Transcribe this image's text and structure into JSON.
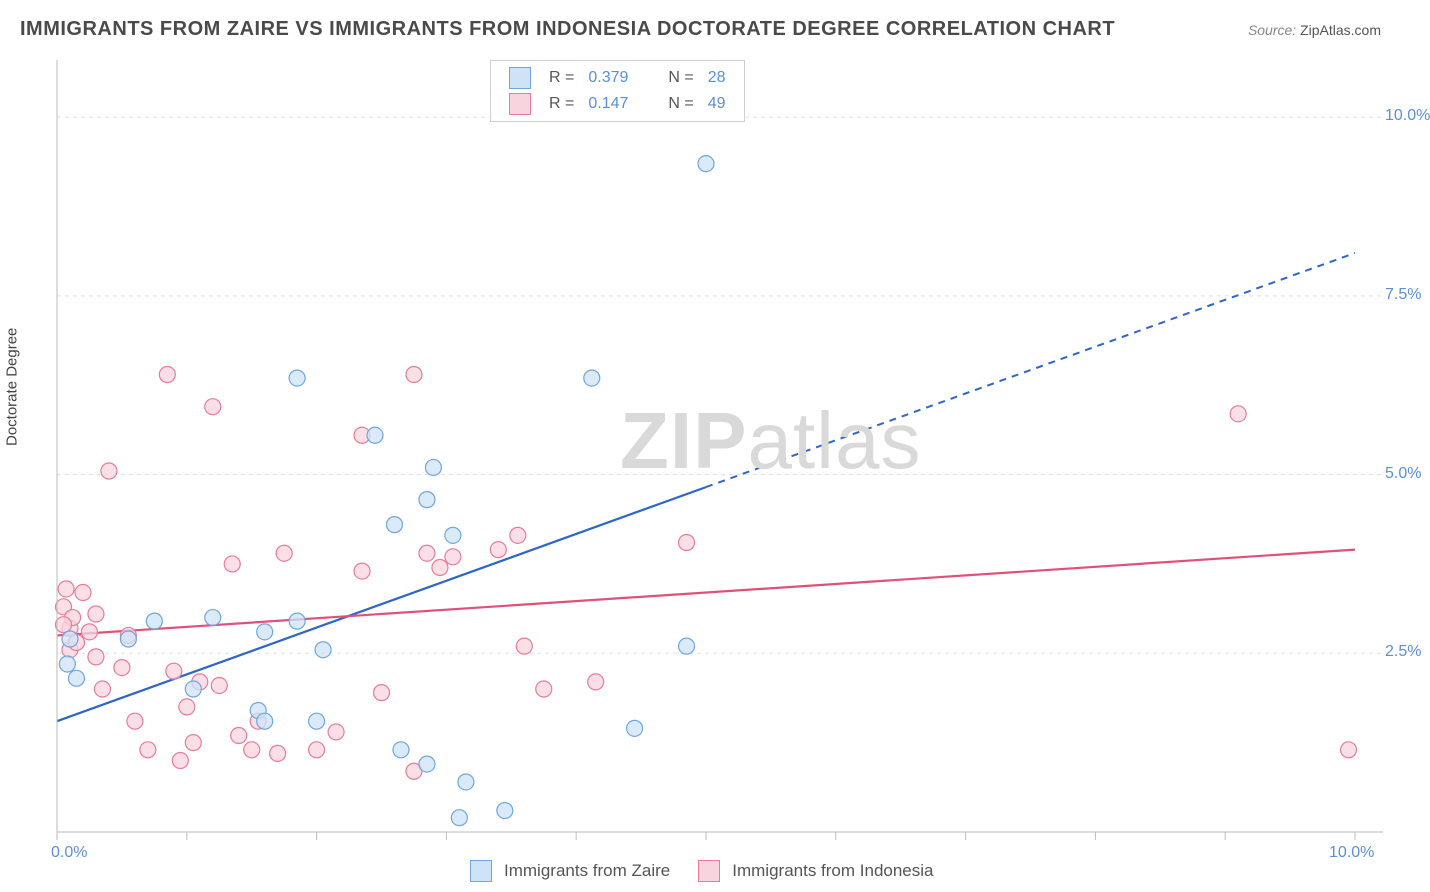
{
  "title": "IMMIGRANTS FROM ZAIRE VS IMMIGRANTS FROM INDONESIA DOCTORATE DEGREE CORRELATION CHART",
  "source_label": "Source:",
  "source_value": "ZipAtlas.com",
  "ylabel": "Doctorate Degree",
  "watermark_a": "ZIP",
  "watermark_b": "atlas",
  "watermark_color": "#d9d9d9",
  "chart": {
    "type": "scatter",
    "xlim": [
      0,
      10
    ],
    "ylim": [
      0,
      10.8
    ],
    "x_ticks": [
      0,
      1,
      2,
      3,
      4,
      5,
      6,
      7,
      8,
      9,
      10
    ],
    "y_grid": [
      2.5,
      5.0,
      7.5,
      10.0
    ],
    "x_axis_labels": [
      {
        "v": 0,
        "t": "0.0%"
      },
      {
        "v": 10,
        "t": "10.0%"
      }
    ],
    "y_axis_labels": [
      {
        "v": 2.5,
        "t": "2.5%"
      },
      {
        "v": 5.0,
        "t": "5.0%"
      },
      {
        "v": 7.5,
        "t": "7.5%"
      },
      {
        "v": 10.0,
        "t": "10.0%"
      }
    ],
    "axis_color": "#bbbbbb",
    "grid_color": "#e0e0e0",
    "grid_dash": "4 4",
    "tick_label_color": "#5b8fd6",
    "tick_label_fontsize": 16,
    "background_color": "#ffffff",
    "marker_radius": 8,
    "marker_stroke_width": 1.2,
    "series": [
      {
        "name": "Immigrants from Zaire",
        "short": "zaire",
        "fill": "#cfe3f7",
        "stroke": "#6fa6dd",
        "line_color": "#2f66c4",
        "R": "0.379",
        "N": "28",
        "trend": {
          "x1": 0,
          "y1": 1.55,
          "x2": 10,
          "y2": 8.1,
          "solid_until_x": 5.0
        },
        "points": [
          [
            0.08,
            2.35
          ],
          [
            0.1,
            2.7
          ],
          [
            0.15,
            2.15
          ],
          [
            0.75,
            2.95
          ],
          [
            1.05,
            2.0
          ],
          [
            1.2,
            3.0
          ],
          [
            1.55,
            1.7
          ],
          [
            1.6,
            2.8
          ],
          [
            1.6,
            1.55
          ],
          [
            1.85,
            6.35
          ],
          [
            1.85,
            2.95
          ],
          [
            2.0,
            1.55
          ],
          [
            2.45,
            5.55
          ],
          [
            2.6,
            4.3
          ],
          [
            2.65,
            1.15
          ],
          [
            2.85,
            4.65
          ],
          [
            2.85,
            0.95
          ],
          [
            2.9,
            5.1
          ],
          [
            3.05,
            4.15
          ],
          [
            3.1,
            0.2
          ],
          [
            3.15,
            0.7
          ],
          [
            3.45,
            0.3
          ],
          [
            4.12,
            6.35
          ],
          [
            4.45,
            1.45
          ],
          [
            4.85,
            2.6
          ],
          [
            5.0,
            9.35
          ],
          [
            2.05,
            2.55
          ],
          [
            0.55,
            2.7
          ]
        ]
      },
      {
        "name": "Immigrants from Indonesia",
        "short": "indonesia",
        "fill": "#f8d5de",
        "stroke": "#e77b9a",
        "line_color": "#e05179",
        "R": "0.147",
        "N": "49",
        "trend": {
          "x1": 0,
          "y1": 2.75,
          "x2": 10,
          "y2": 3.95,
          "solid_until_x": 10
        },
        "points": [
          [
            0.05,
            3.15
          ],
          [
            0.07,
            3.4
          ],
          [
            0.1,
            2.85
          ],
          [
            0.1,
            2.55
          ],
          [
            0.12,
            3.0
          ],
          [
            0.15,
            2.65
          ],
          [
            0.2,
            3.35
          ],
          [
            0.25,
            2.8
          ],
          [
            0.3,
            2.45
          ],
          [
            0.3,
            3.05
          ],
          [
            0.35,
            2.0
          ],
          [
            0.4,
            5.05
          ],
          [
            0.5,
            2.3
          ],
          [
            0.55,
            2.75
          ],
          [
            0.6,
            1.55
          ],
          [
            0.7,
            1.15
          ],
          [
            0.85,
            6.4
          ],
          [
            0.9,
            2.25
          ],
          [
            0.95,
            1.0
          ],
          [
            1.0,
            1.75
          ],
          [
            1.05,
            1.25
          ],
          [
            1.1,
            2.1
          ],
          [
            1.2,
            5.95
          ],
          [
            1.25,
            2.05
          ],
          [
            1.35,
            3.75
          ],
          [
            1.4,
            1.35
          ],
          [
            1.5,
            1.15
          ],
          [
            1.55,
            1.55
          ],
          [
            1.7,
            1.1
          ],
          [
            1.75,
            3.9
          ],
          [
            2.0,
            1.15
          ],
          [
            2.15,
            1.4
          ],
          [
            2.35,
            5.55
          ],
          [
            2.35,
            3.65
          ],
          [
            2.5,
            1.95
          ],
          [
            2.75,
            6.4
          ],
          [
            2.75,
            0.85
          ],
          [
            2.85,
            3.9
          ],
          [
            2.95,
            3.7
          ],
          [
            3.05,
            3.85
          ],
          [
            3.4,
            3.95
          ],
          [
            3.55,
            4.15
          ],
          [
            3.6,
            2.6
          ],
          [
            3.75,
            2.0
          ],
          [
            4.15,
            2.1
          ],
          [
            4.85,
            4.05
          ],
          [
            9.1,
            5.85
          ],
          [
            9.95,
            1.15
          ],
          [
            0.05,
            2.9
          ]
        ]
      }
    ]
  },
  "legend_top": {
    "r_label": "R =",
    "n_label": "N ="
  },
  "legend_bottom": {
    "items": [
      "Immigrants from Zaire",
      "Immigrants from Indonesia"
    ]
  }
}
